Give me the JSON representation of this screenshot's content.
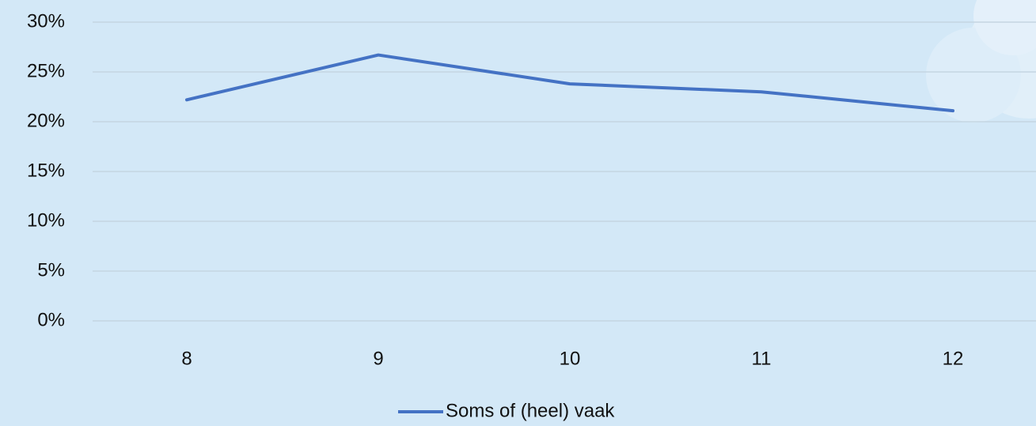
{
  "chart_data": {
    "type": "line",
    "categories": [
      "8",
      "9",
      "10",
      "11",
      "12"
    ],
    "series": [
      {
        "name": "Soms of (heel) vaak",
        "color": "#4472c4",
        "values": [
          22.2,
          26.7,
          23.8,
          23.0,
          21.1
        ]
      }
    ],
    "ylim": [
      0,
      30
    ],
    "yticks": [
      {
        "value": 0,
        "label": "0%"
      },
      {
        "value": 5,
        "label": "5%"
      },
      {
        "value": 10,
        "label": "10%"
      },
      {
        "value": 15,
        "label": "15%"
      },
      {
        "value": 20,
        "label": "20%"
      },
      {
        "value": 25,
        "label": "25%"
      },
      {
        "value": 30,
        "label": "30%"
      }
    ],
    "grid": true,
    "legend": "bottom"
  }
}
